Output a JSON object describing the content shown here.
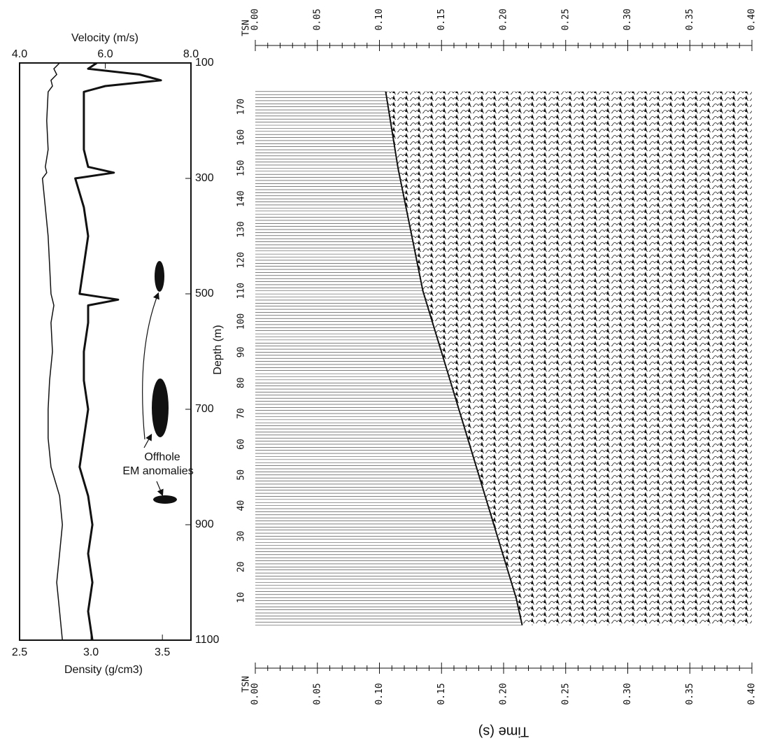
{
  "chart_data": [
    {
      "type": "line",
      "xlabel": "Velocity (m/s)",
      "x2label": "Density (g/cm3)",
      "ylabel": "Depth (m)",
      "xlim": [
        4,
        8
      ],
      "xticks": [
        {
          "value": 4,
          "label": "4.0"
        },
        {
          "value": 6,
          "label": "6.0"
        },
        {
          "value": 8,
          "label": "8.0"
        }
      ],
      "x2lim": [
        2.5,
        3.7
      ],
      "x2ticks": [
        {
          "value": 2.5,
          "label": "2.5"
        },
        {
          "value": 3,
          "label": "3.0"
        },
        {
          "value": 3.5,
          "label": "3.5"
        }
      ],
      "ylim": [
        100,
        1100
      ],
      "yticks": [
        100,
        300,
        500,
        700,
        900,
        1100
      ],
      "y": [
        100,
        110,
        120,
        130,
        140,
        150,
        200,
        250,
        280,
        290,
        300,
        350,
        400,
        450,
        500,
        510,
        520,
        550,
        600,
        650,
        700,
        750,
        800,
        850,
        900,
        950,
        1000,
        1050,
        1100
      ],
      "series": [
        {
          "color": "#111111",
          "width": 3,
          "values": [
            5.8,
            5.6,
            6.8,
            7.3,
            6.0,
            5.5,
            5.5,
            5.5,
            5.6,
            6.2,
            5.3,
            5.5,
            5.6,
            5.5,
            5.4,
            6.3,
            5.6,
            5.6,
            5.5,
            5.5,
            5.6,
            5.5,
            5.4,
            5.6,
            5.7,
            5.6,
            5.7,
            5.6,
            5.7
          ]
        },
        {
          "color": "#111111",
          "width": 1.5,
          "axis": "x2",
          "values": [
            2.78,
            2.74,
            2.76,
            2.72,
            2.73,
            2.7,
            2.69,
            2.7,
            2.68,
            2.69,
            2.66,
            2.68,
            2.7,
            2.71,
            2.72,
            2.73,
            2.74,
            2.72,
            2.73,
            2.71,
            2.7,
            2.7,
            2.72,
            2.78,
            2.8,
            2.78,
            2.76,
            2.78,
            2.8
          ]
        }
      ],
      "annotations": [
        "Offhole",
        "EM anomalies"
      ]
    },
    {
      "type": "wiggle",
      "xlabel": "Time (s)",
      "ylabel": "TSN",
      "xlim": [
        0,
        0.4
      ],
      "xticks": [
        {
          "value": 0,
          "label": "0.00"
        },
        {
          "value": 0.05,
          "label": "0.05"
        },
        {
          "value": 0.1,
          "label": "0.10"
        },
        {
          "value": 0.15,
          "label": "0.15"
        },
        {
          "value": 0.2,
          "label": "0.20"
        },
        {
          "value": 0.25,
          "label": "0.25"
        },
        {
          "value": 0.3,
          "label": "0.30"
        },
        {
          "value": 0.35,
          "label": "0.35"
        },
        {
          "value": 0.4,
          "label": "0.40"
        }
      ],
      "ylim": [
        -13,
        190
      ],
      "yticks": [
        10,
        20,
        30,
        40,
        50,
        60,
        70,
        80,
        90,
        100,
        110,
        120,
        130,
        140,
        150,
        160,
        170
      ],
      "tsn": [
        1,
        10,
        30,
        50,
        70,
        90,
        110,
        130,
        150,
        175
      ],
      "first_break": [
        0.215,
        0.21,
        0.195,
        0.18,
        0.165,
        0.15,
        0.135,
        0.125,
        0.115,
        0.105
      ]
    }
  ]
}
